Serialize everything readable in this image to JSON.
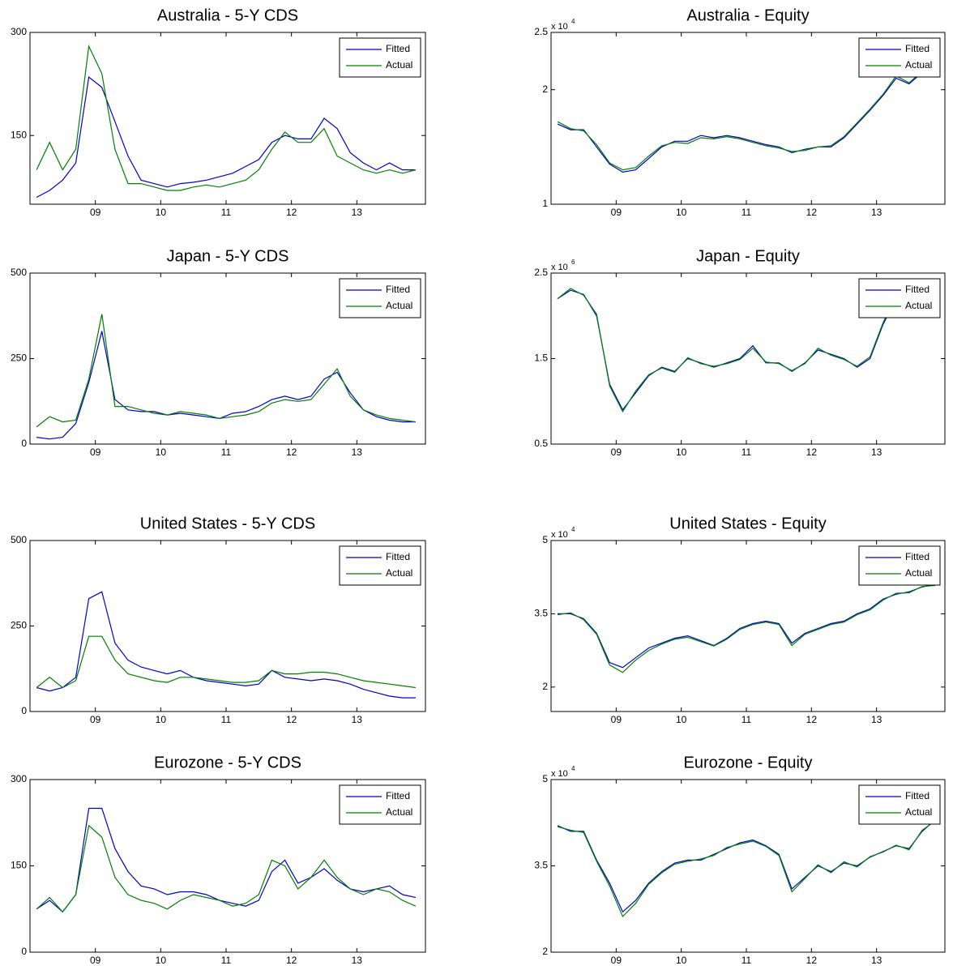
{
  "chart_data": [
    {
      "type": "line",
      "title": "Australia - 5-Y CDS",
      "legend": "upper right",
      "grid": false,
      "x": [
        8.1,
        8.3,
        8.5,
        8.7,
        8.9,
        9.1,
        9.3,
        9.5,
        9.7,
        9.9,
        10.1,
        10.3,
        10.5,
        10.7,
        10.9,
        11.1,
        11.3,
        11.5,
        11.7,
        11.9,
        12.1,
        12.3,
        12.5,
        12.7,
        12.9,
        13.1,
        13.3,
        13.5,
        13.7,
        13.9
      ],
      "xlim": [
        8,
        14.05
      ],
      "xticks": [
        {
          "value": 9,
          "label": "09"
        },
        10,
        11,
        12,
        13
      ],
      "ylim": [
        50,
        300
      ],
      "yticks": [
        150,
        300
      ],
      "series": [
        {
          "name": "Fitted",
          "color": "#0000cc",
          "values": [
            60,
            70,
            85,
            110,
            235,
            220,
            170,
            120,
            85,
            80,
            75,
            80,
            82,
            85,
            90,
            95,
            105,
            115,
            140,
            150,
            145,
            145,
            175,
            160,
            125,
            110,
            100,
            110,
            100,
            100
          ]
        },
        {
          "name": "Actual",
          "color": "#008000",
          "values": [
            100,
            140,
            100,
            130,
            280,
            240,
            130,
            80,
            80,
            75,
            70,
            70,
            75,
            78,
            75,
            80,
            85,
            100,
            130,
            155,
            140,
            140,
            160,
            120,
            110,
            100,
            95,
            100,
            95,
            100
          ]
        }
      ]
    },
    {
      "type": "line",
      "title": "Australia - Equity",
      "legend": "upper right",
      "grid": false,
      "multiplier_base": "x 10",
      "multiplier_exp": "4",
      "x": [
        8.1,
        8.3,
        8.5,
        8.7,
        8.9,
        9.1,
        9.3,
        9.5,
        9.7,
        9.9,
        10.1,
        10.3,
        10.5,
        10.7,
        10.9,
        11.1,
        11.3,
        11.5,
        11.7,
        11.9,
        12.1,
        12.3,
        12.5,
        12.7,
        12.9,
        13.1,
        13.3,
        13.5,
        13.7,
        13.9
      ],
      "xlim": [
        8,
        14.05
      ],
      "xticks": [
        {
          "value": 9,
          "label": "09"
        },
        10,
        11,
        12,
        13
      ],
      "ylim": [
        1,
        2.5
      ],
      "yticks": [
        1,
        2,
        2.5
      ],
      "series": [
        {
          "name": "Fitted",
          "color": "#0000cc",
          "values": [
            1.7,
            1.65,
            1.65,
            1.5,
            1.35,
            1.28,
            1.3,
            1.4,
            1.5,
            1.55,
            1.55,
            1.6,
            1.58,
            1.6,
            1.58,
            1.55,
            1.52,
            1.5,
            1.45,
            1.48,
            1.5,
            1.5,
            1.58,
            1.7,
            1.82,
            1.95,
            2.1,
            2.05,
            2.15,
            2.18
          ]
        },
        {
          "name": "Actual",
          "color": "#008000",
          "values": [
            1.72,
            1.66,
            1.64,
            1.52,
            1.36,
            1.3,
            1.32,
            1.42,
            1.51,
            1.54,
            1.53,
            1.58,
            1.57,
            1.59,
            1.57,
            1.54,
            1.51,
            1.49,
            1.46,
            1.47,
            1.5,
            1.51,
            1.59,
            1.71,
            1.83,
            1.96,
            2.12,
            2.06,
            2.16,
            2.17
          ]
        }
      ]
    },
    {
      "type": "line",
      "title": "Japan - 5-Y CDS",
      "legend": "upper right",
      "grid": false,
      "x": [
        8.1,
        8.3,
        8.5,
        8.7,
        8.9,
        9.1,
        9.3,
        9.5,
        9.7,
        9.9,
        10.1,
        10.3,
        10.5,
        10.7,
        10.9,
        11.1,
        11.3,
        11.5,
        11.7,
        11.9,
        12.1,
        12.3,
        12.5,
        12.7,
        12.9,
        13.1,
        13.3,
        13.5,
        13.7,
        13.9
      ],
      "xlim": [
        8,
        14.05
      ],
      "xticks": [
        {
          "value": 9,
          "label": "09"
        },
        10,
        11,
        12,
        13
      ],
      "ylim": [
        0,
        500
      ],
      "yticks": [
        0,
        250,
        500
      ],
      "series": [
        {
          "name": "Fitted",
          "color": "#0000cc",
          "values": [
            20,
            15,
            20,
            60,
            180,
            330,
            130,
            100,
            95,
            95,
            85,
            90,
            85,
            80,
            75,
            90,
            95,
            110,
            130,
            140,
            130,
            140,
            190,
            210,
            150,
            100,
            80,
            70,
            65,
            65
          ]
        },
        {
          "name": "Actual",
          "color": "#008000",
          "values": [
            50,
            80,
            65,
            70,
            190,
            380,
            110,
            110,
            100,
            90,
            85,
            95,
            90,
            85,
            75,
            80,
            85,
            95,
            120,
            130,
            125,
            130,
            175,
            220,
            140,
            100,
            85,
            75,
            70,
            65
          ]
        }
      ]
    },
    {
      "type": "line",
      "title": "Japan - Equity",
      "legend": "upper right",
      "grid": false,
      "multiplier_base": "x 10",
      "multiplier_exp": "6",
      "x": [
        8.1,
        8.3,
        8.5,
        8.7,
        8.9,
        9.1,
        9.3,
        9.5,
        9.7,
        9.9,
        10.1,
        10.3,
        10.5,
        10.7,
        10.9,
        11.1,
        11.3,
        11.5,
        11.7,
        11.9,
        12.1,
        12.3,
        12.5,
        12.7,
        12.9,
        13.1,
        13.3,
        13.5,
        13.7,
        13.9
      ],
      "xlim": [
        8,
        14.05
      ],
      "xticks": [
        {
          "value": 9,
          "label": "09"
        },
        10,
        11,
        12,
        13
      ],
      "ylim": [
        0.5,
        2.5
      ],
      "yticks": [
        0.5,
        1.5,
        2.5
      ],
      "series": [
        {
          "name": "Fitted",
          "color": "#0000cc",
          "values": [
            2.2,
            2.3,
            2.25,
            2.0,
            1.2,
            0.9,
            1.1,
            1.3,
            1.4,
            1.35,
            1.5,
            1.45,
            1.4,
            1.45,
            1.5,
            1.65,
            1.45,
            1.45,
            1.35,
            1.45,
            1.6,
            1.55,
            1.5,
            1.4,
            1.5,
            1.9,
            2.2,
            2.1,
            2.1,
            2.15
          ]
        },
        {
          "name": "Actual",
          "color": "#008000",
          "values": [
            2.2,
            2.32,
            2.24,
            2.02,
            1.18,
            0.88,
            1.12,
            1.31,
            1.39,
            1.34,
            1.51,
            1.44,
            1.41,
            1.44,
            1.49,
            1.62,
            1.46,
            1.44,
            1.36,
            1.44,
            1.62,
            1.54,
            1.49,
            1.41,
            1.52,
            1.92,
            2.25,
            2.08,
            2.12,
            2.13
          ]
        }
      ]
    },
    {
      "type": "line",
      "title": "United States - 5-Y CDS",
      "legend": "upper right",
      "grid": false,
      "x": [
        8.1,
        8.3,
        8.5,
        8.7,
        8.9,
        9.1,
        9.3,
        9.5,
        9.7,
        9.9,
        10.1,
        10.3,
        10.5,
        10.7,
        10.9,
        11.1,
        11.3,
        11.5,
        11.7,
        11.9,
        12.1,
        12.3,
        12.5,
        12.7,
        12.9,
        13.1,
        13.3,
        13.5,
        13.7,
        13.9
      ],
      "xlim": [
        8,
        14.05
      ],
      "xticks": [
        {
          "value": 9,
          "label": "09"
        },
        10,
        11,
        12,
        13
      ],
      "ylim": [
        0,
        500
      ],
      "yticks": [
        0,
        250,
        500
      ],
      "series": [
        {
          "name": "Fitted",
          "color": "#0000cc",
          "values": [
            70,
            60,
            70,
            100,
            330,
            350,
            200,
            150,
            130,
            120,
            110,
            120,
            100,
            90,
            85,
            80,
            75,
            80,
            120,
            100,
            95,
            90,
            95,
            90,
            80,
            65,
            55,
            45,
            40,
            40
          ]
        },
        {
          "name": "Actual",
          "color": "#008000",
          "values": [
            70,
            100,
            70,
            90,
            220,
            220,
            150,
            110,
            100,
            90,
            85,
            100,
            100,
            95,
            90,
            85,
            85,
            90,
            120,
            110,
            110,
            115,
            115,
            110,
            100,
            90,
            85,
            80,
            75,
            70
          ]
        }
      ]
    },
    {
      "type": "line",
      "title": "United States - Equity",
      "legend": "upper right",
      "grid": false,
      "multiplier_base": "x 10",
      "multiplier_exp": "4",
      "x": [
        8.1,
        8.3,
        8.5,
        8.7,
        8.9,
        9.1,
        9.3,
        9.5,
        9.7,
        9.9,
        10.1,
        10.3,
        10.5,
        10.7,
        10.9,
        11.1,
        11.3,
        11.5,
        11.7,
        11.9,
        12.1,
        12.3,
        12.5,
        12.7,
        12.9,
        13.1,
        13.3,
        13.5,
        13.7,
        13.9
      ],
      "xlim": [
        8,
        14.05
      ],
      "xticks": [
        {
          "value": 9,
          "label": "09"
        },
        10,
        11,
        12,
        13
      ],
      "ylim": [
        1.5,
        5
      ],
      "yticks": [
        2,
        3.5,
        5
      ],
      "series": [
        {
          "name": "Fitted",
          "color": "#0000cc",
          "values": [
            3.5,
            3.5,
            3.4,
            3.1,
            2.5,
            2.4,
            2.6,
            2.8,
            2.9,
            3.0,
            3.05,
            2.95,
            2.85,
            3.0,
            3.2,
            3.3,
            3.35,
            3.3,
            2.9,
            3.1,
            3.2,
            3.3,
            3.35,
            3.5,
            3.6,
            3.8,
            3.9,
            3.95,
            4.05,
            4.1
          ]
        },
        {
          "name": "Actual",
          "color": "#008000",
          "values": [
            3.48,
            3.52,
            3.38,
            3.08,
            2.45,
            2.3,
            2.55,
            2.75,
            2.88,
            2.98,
            3.02,
            2.93,
            2.84,
            2.98,
            3.18,
            3.28,
            3.33,
            3.28,
            2.85,
            3.08,
            3.18,
            3.28,
            3.33,
            3.48,
            3.58,
            3.78,
            3.92,
            3.93,
            4.06,
            4.08
          ]
        }
      ]
    },
    {
      "type": "line",
      "title": "Eurozone - 5-Y CDS",
      "legend": "upper right",
      "grid": false,
      "x": [
        8.1,
        8.3,
        8.5,
        8.7,
        8.9,
        9.1,
        9.3,
        9.5,
        9.7,
        9.9,
        10.1,
        10.3,
        10.5,
        10.7,
        10.9,
        11.1,
        11.3,
        11.5,
        11.7,
        11.9,
        12.1,
        12.3,
        12.5,
        12.7,
        12.9,
        13.1,
        13.3,
        13.5,
        13.7,
        13.9
      ],
      "xlim": [
        8,
        14.05
      ],
      "xticks": [
        {
          "value": 9,
          "label": "09"
        },
        10,
        11,
        12,
        13
      ],
      "ylim": [
        0,
        300
      ],
      "yticks": [
        0,
        150,
        300
      ],
      "series": [
        {
          "name": "Fitted",
          "color": "#0000cc",
          "values": [
            75,
            90,
            70,
            100,
            250,
            250,
            180,
            140,
            115,
            110,
            100,
            105,
            105,
            100,
            90,
            85,
            80,
            90,
            140,
            160,
            120,
            130,
            145,
            125,
            110,
            105,
            110,
            115,
            100,
            95
          ]
        },
        {
          "name": "Actual",
          "color": "#008000",
          "values": [
            75,
            95,
            70,
            100,
            220,
            200,
            130,
            100,
            90,
            85,
            75,
            90,
            100,
            95,
            90,
            80,
            85,
            100,
            160,
            150,
            110,
            130,
            160,
            130,
            110,
            100,
            110,
            105,
            90,
            80
          ]
        }
      ]
    },
    {
      "type": "line",
      "title": "Eurozone - Equity",
      "legend": "upper right",
      "grid": false,
      "multiplier_base": "x 10",
      "multiplier_exp": "4",
      "x": [
        8.1,
        8.3,
        8.5,
        8.7,
        8.9,
        9.1,
        9.3,
        9.5,
        9.7,
        9.9,
        10.1,
        10.3,
        10.5,
        10.7,
        10.9,
        11.1,
        11.3,
        11.5,
        11.7,
        11.9,
        12.1,
        12.3,
        12.5,
        12.7,
        12.9,
        13.1,
        13.3,
        13.5,
        13.7,
        13.9
      ],
      "xlim": [
        8,
        14.05
      ],
      "xticks": [
        {
          "value": 9,
          "label": "09"
        },
        10,
        11,
        12,
        13
      ],
      "ylim": [
        2,
        5
      ],
      "yticks": [
        2,
        3.5,
        5
      ],
      "series": [
        {
          "name": "Fitted",
          "color": "#0000cc",
          "values": [
            4.2,
            4.1,
            4.1,
            3.6,
            3.2,
            2.7,
            2.9,
            3.2,
            3.4,
            3.55,
            3.6,
            3.6,
            3.7,
            3.8,
            3.9,
            3.95,
            3.85,
            3.7,
            3.1,
            3.3,
            3.5,
            3.4,
            3.55,
            3.5,
            3.65,
            3.75,
            3.85,
            3.8,
            4.1,
            4.3
          ]
        },
        {
          "name": "Actual",
          "color": "#008000",
          "values": [
            4.18,
            4.12,
            4.08,
            3.58,
            3.15,
            2.62,
            2.85,
            3.18,
            3.38,
            3.53,
            3.58,
            3.62,
            3.68,
            3.82,
            3.88,
            3.93,
            3.84,
            3.68,
            3.05,
            3.28,
            3.52,
            3.38,
            3.57,
            3.48,
            3.66,
            3.74,
            3.86,
            3.78,
            4.12,
            4.28
          ]
        }
      ]
    }
  ]
}
